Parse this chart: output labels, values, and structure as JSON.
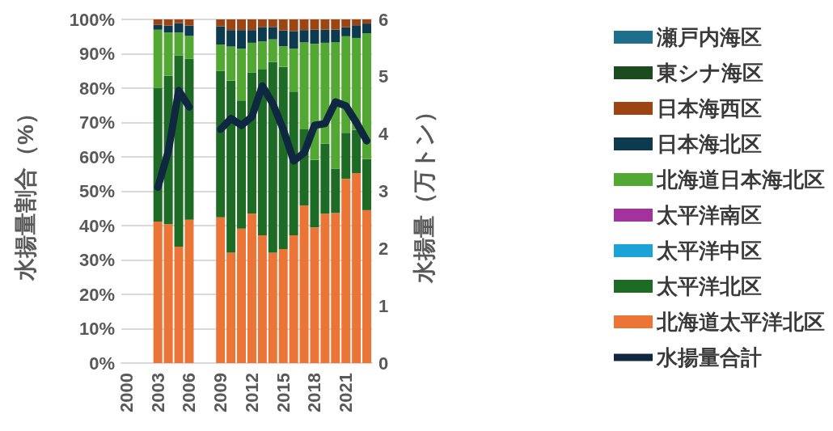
{
  "chart_data": {
    "type": "bar",
    "stacked": true,
    "ylabel": "水揚量割合（%）",
    "y2label": "水揚量（万トン）",
    "categories": [
      "2000",
      null,
      null,
      "2003",
      null,
      null,
      "2006",
      null,
      null,
      "2009",
      null,
      null,
      "2012",
      null,
      null,
      "2015",
      null,
      null,
      "2018",
      null,
      null,
      "2021",
      null,
      null
    ],
    "ylim": [
      0,
      100
    ],
    "yticks": [
      {
        "value": 0,
        "label": "0%"
      },
      {
        "value": 10,
        "label": "10%"
      },
      {
        "value": 20,
        "label": "20%"
      },
      {
        "value": 30,
        "label": "30%"
      },
      {
        "value": 40,
        "label": "40%"
      },
      {
        "value": 50,
        "label": "50%"
      },
      {
        "value": 60,
        "label": "60%"
      },
      {
        "value": 70,
        "label": "70%"
      },
      {
        "value": 80,
        "label": "80%"
      },
      {
        "value": 90,
        "label": "90%"
      },
      {
        "value": 100,
        "label": "100%"
      }
    ],
    "y2lim": [
      0,
      6
    ],
    "y2ticks": [
      0,
      1,
      2,
      3,
      4,
      5,
      6
    ],
    "grid": "y",
    "legend": "right",
    "marker": "none",
    "line_style": "solid",
    "series": [
      {
        "name": "北海道太平洋北区",
        "color": "#ea7536",
        "values": [
          null,
          null,
          null,
          41.2,
          40.4,
          33.9,
          41.7,
          null,
          null,
          42.4,
          32.1,
          39.1,
          43.5,
          37.2,
          32.1,
          33.2,
          37.2,
          45.8,
          39.5,
          43.5,
          43.7,
          53.6,
          55.3,
          44.5
        ]
      },
      {
        "name": "太平洋北区",
        "color": "#1d6b24",
        "values": [
          null,
          null,
          null,
          38.9,
          43.2,
          55.6,
          46.8,
          null,
          null,
          42.6,
          50.1,
          37.3,
          41.1,
          48.2,
          55.5,
          53.0,
          41.8,
          22.2,
          19.6,
          20.3,
          12.9,
          13.4,
          12.5,
          14.9
        ]
      },
      {
        "name": "太平洋中区",
        "color": "#1ba3d8",
        "values": [
          null,
          null,
          null,
          0,
          0,
          0,
          0,
          null,
          null,
          0,
          0,
          0,
          0,
          0,
          0,
          0,
          0,
          0,
          0,
          0,
          0,
          0,
          0,
          0
        ]
      },
      {
        "name": "太平洋南区",
        "color": "#a2339e",
        "values": [
          null,
          null,
          null,
          0,
          0,
          0,
          0,
          null,
          null,
          0,
          0,
          0,
          0,
          0,
          0,
          0,
          0,
          0,
          0,
          0,
          0,
          0,
          0,
          0
        ]
      },
      {
        "name": "北海道日本海北区",
        "color": "#52a832",
        "values": [
          null,
          null,
          null,
          16.9,
          12.6,
          6.7,
          6.7,
          null,
          null,
          7.7,
          9.9,
          15.1,
          8.6,
          8.2,
          6.6,
          6.0,
          12.5,
          25.3,
          33.8,
          29.4,
          36.8,
          28.1,
          26.8,
          36.6
        ]
      },
      {
        "name": "日本海北区",
        "color": "#0e3a4f",
        "values": [
          null,
          null,
          null,
          1.4,
          2.0,
          2.7,
          3.0,
          null,
          null,
          5.3,
          4.8,
          5.4,
          3.7,
          4.2,
          3.6,
          4.6,
          5.1,
          3.6,
          4.1,
          3.8,
          3.6,
          2.6,
          3.7,
          2.8
        ]
      },
      {
        "name": "日本海西区",
        "color": "#9c4514",
        "values": [
          null,
          null,
          null,
          1.6,
          1.8,
          1.1,
          1.8,
          null,
          null,
          2.0,
          3.1,
          3.1,
          3.1,
          2.2,
          2.2,
          3.2,
          3.4,
          3.1,
          3.0,
          3.0,
          3.0,
          2.3,
          1.7,
          1.2
        ]
      },
      {
        "name": "東シナ海区",
        "color": "#1b4b1e",
        "values": [
          null,
          null,
          null,
          0,
          0,
          0,
          0,
          null,
          null,
          0,
          0,
          0,
          0,
          0,
          0,
          0,
          0,
          0,
          0,
          0,
          0,
          0,
          0,
          0
        ]
      },
      {
        "name": "瀬戸内海区",
        "color": "#1f6e8c",
        "values": [
          null,
          null,
          null,
          0,
          0,
          0,
          0,
          null,
          null,
          0,
          0,
          0,
          0,
          0,
          0,
          0,
          0,
          0,
          0,
          0,
          0,
          0,
          0,
          0
        ]
      },
      {
        "name": "水揚量合計",
        "type": "line",
        "axis": "y2",
        "color": "#0f2740",
        "values": [
          null,
          null,
          null,
          3.07,
          3.7,
          4.76,
          4.47,
          null,
          null,
          4.08,
          4.27,
          4.15,
          4.3,
          4.84,
          4.53,
          4.08,
          3.53,
          3.67,
          4.15,
          4.18,
          4.56,
          4.49,
          4.2,
          3.88
        ]
      }
    ]
  }
}
